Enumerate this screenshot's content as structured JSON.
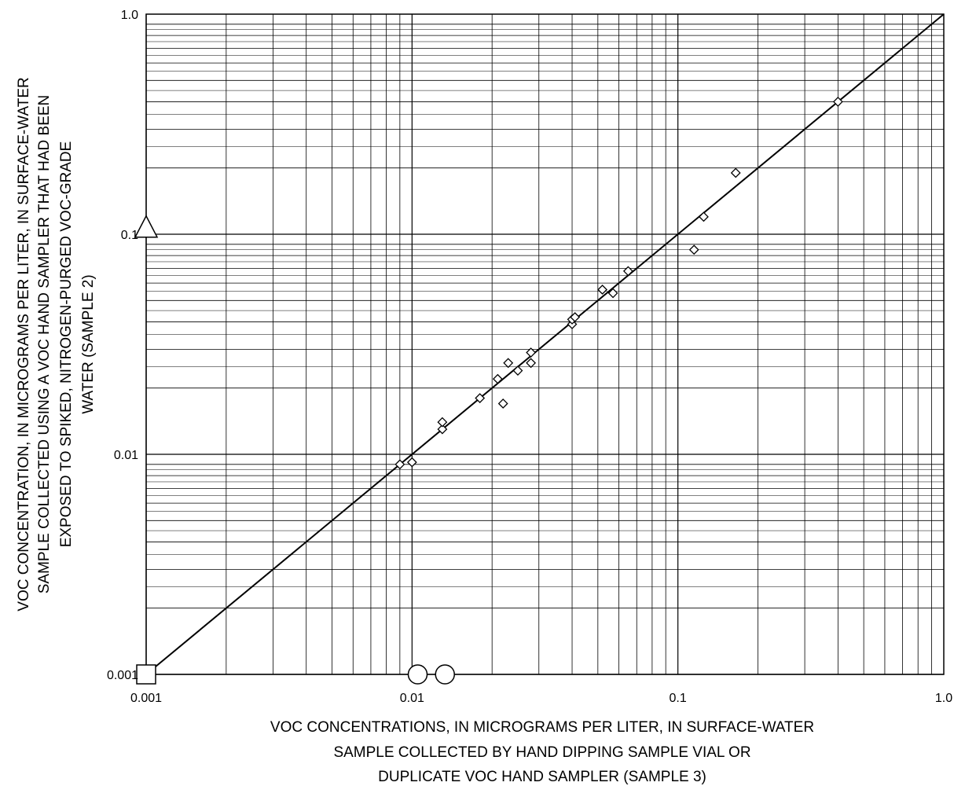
{
  "chart_data": {
    "type": "scatter",
    "title": "",
    "xscale": "log",
    "yscale": "log",
    "xlim": [
      0.001,
      1.0
    ],
    "ylim": [
      0.001,
      1.0
    ],
    "grid": true,
    "x_tick_labels": [
      "0.001",
      "0.01",
      "0.1",
      "1.0"
    ],
    "y_tick_labels": [
      "0.001",
      "0.01",
      "0.1",
      "1.0"
    ],
    "xlabel_lines": [
      "VOC CONCENTRATIONS, IN MICROGRAMS PER LITER, IN SURFACE-WATER",
      "SAMPLE COLLECTED BY HAND DIPPING SAMPLE VIAL OR",
      "DUPLICATE VOC HAND SAMPLER (SAMPLE 3)"
    ],
    "ylabel_lines": [
      "VOC CONCENTRATION, IN MICROGRAMS PER LITER, IN SURFACE-WATER",
      "SAMPLE COLLECTED USING A VOC HAND SAMPLER THAT HAD BEEN",
      "EXPOSED TO SPIKED, NITROGEN-PURGED VOC-GRADE",
      "WATER (SAMPLE 2)"
    ],
    "reference_line": {
      "x": [
        0.001,
        1.0
      ],
      "y": [
        0.001,
        1.0
      ]
    },
    "series": [
      {
        "marker": "diamond",
        "points": [
          [
            0.009,
            0.009
          ],
          [
            0.01,
            0.0092
          ],
          [
            0.013,
            0.013
          ],
          [
            0.013,
            0.014
          ],
          [
            0.018,
            0.018
          ],
          [
            0.021,
            0.022
          ],
          [
            0.022,
            0.017
          ],
          [
            0.023,
            0.026
          ],
          [
            0.025,
            0.024
          ],
          [
            0.028,
            0.026
          ],
          [
            0.028,
            0.029
          ],
          [
            0.04,
            0.039
          ],
          [
            0.04,
            0.041
          ],
          [
            0.041,
            0.042
          ],
          [
            0.052,
            0.056
          ],
          [
            0.057,
            0.054
          ],
          [
            0.065,
            0.068
          ],
          [
            0.115,
            0.085
          ],
          [
            0.125,
            0.12
          ],
          [
            0.165,
            0.19
          ],
          [
            0.4,
            0.4
          ]
        ]
      },
      {
        "marker": "open-circle",
        "points": [
          [
            0.0105,
            0.001
          ],
          [
            0.0133,
            0.001
          ]
        ]
      },
      {
        "marker": "open-triangle",
        "points": [
          [
            0.001,
            0.107
          ]
        ]
      },
      {
        "marker": "open-square",
        "points": [
          [
            0.001,
            0.001
          ]
        ]
      }
    ]
  }
}
